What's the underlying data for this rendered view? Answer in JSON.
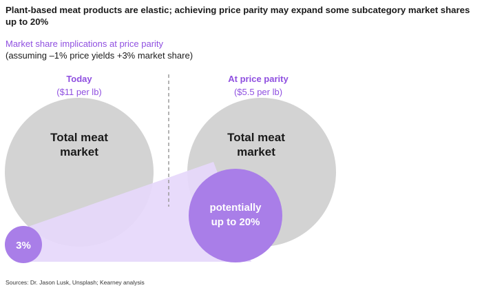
{
  "title": "Plant-based meat products are elastic; achieving price parity may expand some subcategory market shares up to 20%",
  "subtitle": "Market share implications at price parity",
  "assumption": "(assuming –1% price yields +3% market share)",
  "today": {
    "heading": "Today",
    "price": "($11 per lb)",
    "market_label_line1": "Total meat",
    "market_label_line2": "market",
    "share_label": "3%"
  },
  "parity": {
    "heading": "At price parity",
    "price": "($5.5 per lb)",
    "market_label_line1": "Total meat",
    "market_label_line2": "market",
    "share_label_line1": "potentially",
    "share_label_line2": "up to 20%"
  },
  "colors": {
    "accent": "#8f4fe0",
    "circle_grey": "#d3d3d3",
    "share_purple": "#a97ee8",
    "wedge": "#e6d8fb",
    "divider": "#9a9a9a"
  },
  "source": "Sources: Dr. Jason Lusk, Unsplash; Kearney analysis"
}
